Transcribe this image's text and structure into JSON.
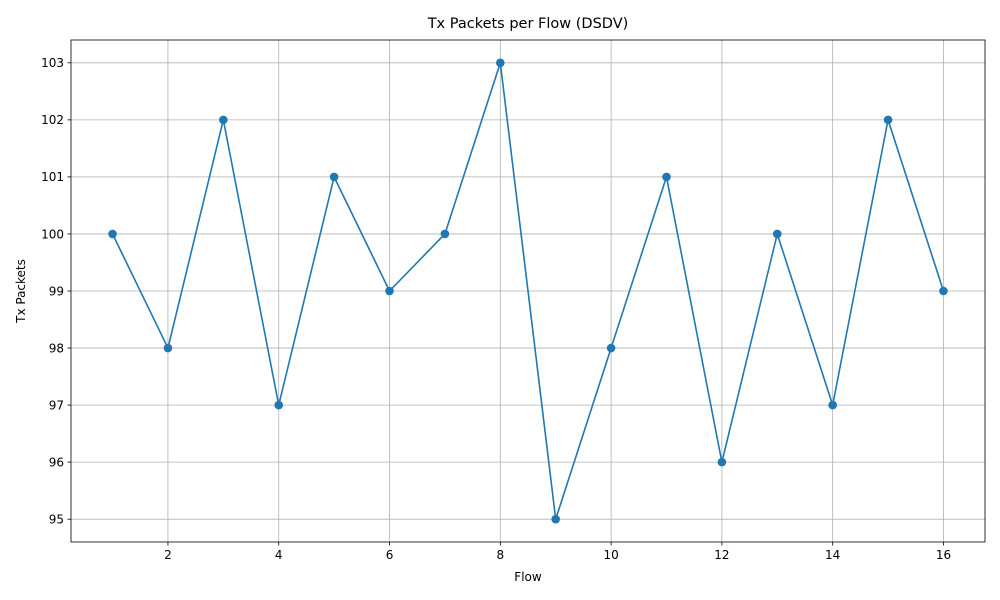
{
  "chart_data": {
    "type": "line",
    "title": "Tx Packets per Flow (DSDV)",
    "xlabel": "Flow",
    "ylabel": "Tx Packets",
    "xlim": [
      0.25,
      16.75
    ],
    "ylim": [
      94.6,
      103.4
    ],
    "x_ticks": [
      2,
      4,
      6,
      8,
      10,
      12,
      14,
      16
    ],
    "y_ticks": [
      95,
      96,
      97,
      98,
      99,
      100,
      101,
      102,
      103
    ],
    "grid": true,
    "marker": "circle",
    "series": [
      {
        "color": "#1f77b4",
        "x": [
          1,
          2,
          3,
          4,
          5,
          6,
          7,
          8,
          9,
          10,
          11,
          12,
          13,
          14,
          15,
          16
        ],
        "values": [
          100,
          98,
          102,
          97,
          101,
          99,
          100,
          103,
          95,
          98,
          101,
          96,
          100,
          97,
          102,
          99
        ]
      }
    ]
  }
}
